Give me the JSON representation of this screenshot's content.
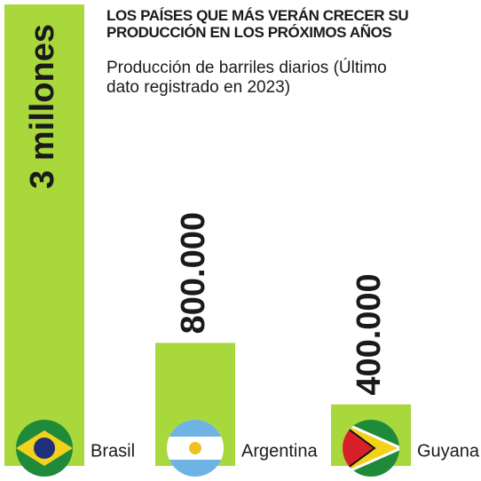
{
  "chart_data": {
    "type": "bar",
    "title": "LOS PAÍSES QUE MÁS VERÁN CRECER SU PRODUCCIÓN EN LOS PRÓXIMOS AÑOS",
    "subtitle": "Producción de barriles diarios (Último dato registrado en 2023)",
    "categories": [
      "Brasil",
      "Argentina",
      "Guyana"
    ],
    "values": [
      3000000,
      800000,
      400000
    ],
    "value_labels": [
      "3 millones",
      "800.000",
      "400.000"
    ],
    "color": "#a8d83c"
  }
}
